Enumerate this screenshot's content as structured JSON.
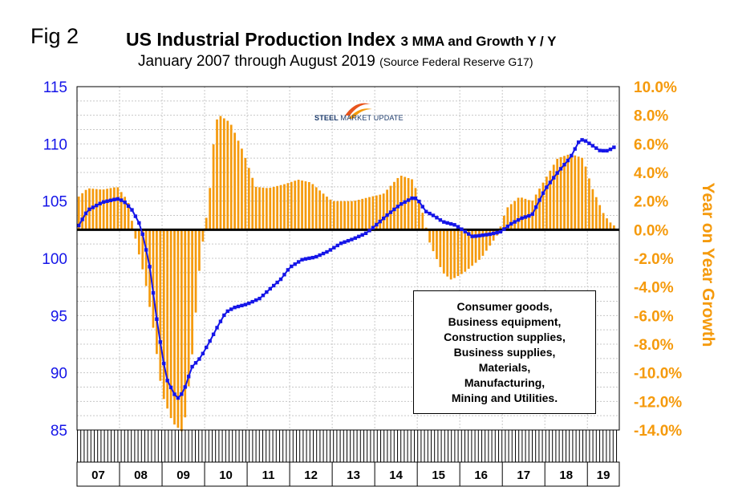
{
  "header": {
    "fig_label": "Fig 2",
    "title": "US Industrial Production Index",
    "title_suffix": "3 MMA and Growth Y / Y",
    "subtitle": "January 2007 through August 2019",
    "subtitle_suffix": "(Source Federal Reserve G17)"
  },
  "logo": {
    "text_bold": "STEEL",
    "text_light": "MARKET UPDATE"
  },
  "legend_box": {
    "lines": [
      "Consumer goods,",
      "Business equipment,",
      "Construction supplies,",
      "Business supplies,",
      "Materials,",
      "Manufacturing,",
      "Mining and Utilities."
    ]
  },
  "colors": {
    "index_line": "#1515e8",
    "growth_bars": "#f59a0c",
    "zero_line": "#000000"
  },
  "chart_data": {
    "type": "bar+line",
    "x_categories": [
      "07",
      "08",
      "09",
      "10",
      "11",
      "12",
      "13",
      "14",
      "15",
      "16",
      "17",
      "18",
      "19"
    ],
    "y_left": {
      "ylim": [
        85,
        115
      ],
      "ticks": [
        "115",
        "110",
        "105",
        "100",
        "95",
        "90",
        "85"
      ]
    },
    "y_right": {
      "label": "Year on Year Growth",
      "ylim": [
        -14,
        10
      ],
      "ticks": [
        "10.0%",
        "8.0%",
        "6.0%",
        "4.0%",
        "2.0%",
        "0.0%",
        "-2.0%",
        "-4.0%",
        "-6.0%",
        "-8.0%",
        "-10.0%",
        "-12.0%",
        "-14.0%"
      ]
    },
    "grid": true,
    "series": [
      {
        "axis": "left",
        "kind": "line",
        "anchors": [
          [
            2007.0,
            102.6
          ],
          [
            2007.25,
            104.2
          ],
          [
            2007.6,
            104.9
          ],
          [
            2007.95,
            105.2
          ],
          [
            2008.1,
            105.0
          ],
          [
            2008.3,
            104.2
          ],
          [
            2008.5,
            102.8
          ],
          [
            2008.7,
            99.5
          ],
          [
            2008.9,
            94.0
          ],
          [
            2009.1,
            89.5
          ],
          [
            2009.35,
            87.7
          ],
          [
            2009.5,
            88.3
          ],
          [
            2009.7,
            90.5
          ],
          [
            2009.9,
            91.3
          ],
          [
            2010.1,
            92.6
          ],
          [
            2010.3,
            94.0
          ],
          [
            2010.5,
            95.3
          ],
          [
            2010.7,
            95.7
          ],
          [
            2011.0,
            96.0
          ],
          [
            2011.3,
            96.5
          ],
          [
            2011.5,
            97.2
          ],
          [
            2011.8,
            98.2
          ],
          [
            2012.0,
            99.2
          ],
          [
            2012.3,
            99.9
          ],
          [
            2012.6,
            100.1
          ],
          [
            2012.9,
            100.6
          ],
          [
            2013.2,
            101.3
          ],
          [
            2013.5,
            101.7
          ],
          [
            2013.8,
            102.2
          ],
          [
            2014.0,
            102.8
          ],
          [
            2014.3,
            103.8
          ],
          [
            2014.6,
            104.7
          ],
          [
            2014.9,
            105.3
          ],
          [
            2015.0,
            105.2
          ],
          [
            2015.2,
            104.1
          ],
          [
            2015.4,
            103.7
          ],
          [
            2015.6,
            103.2
          ],
          [
            2015.9,
            102.9
          ],
          [
            2016.1,
            102.4
          ],
          [
            2016.3,
            101.9
          ],
          [
            2016.5,
            102.0
          ],
          [
            2016.7,
            102.1
          ],
          [
            2016.95,
            102.3
          ],
          [
            2017.2,
            103.0
          ],
          [
            2017.45,
            103.5
          ],
          [
            2017.7,
            103.8
          ],
          [
            2018.0,
            106.0
          ],
          [
            2018.3,
            107.5
          ],
          [
            2018.6,
            108.8
          ],
          [
            2018.8,
            110.2
          ],
          [
            2018.9,
            110.4
          ],
          [
            2019.1,
            109.9
          ],
          [
            2019.3,
            109.4
          ],
          [
            2019.5,
            109.4
          ],
          [
            2019.6,
            109.7
          ]
        ]
      },
      {
        "axis": "right",
        "kind": "bar",
        "anchors": [
          [
            2007.0,
            2.2
          ],
          [
            2007.25,
            2.9
          ],
          [
            2007.6,
            2.8
          ],
          [
            2007.95,
            3.0
          ],
          [
            2008.2,
            2.0
          ],
          [
            2008.4,
            -1.0
          ],
          [
            2008.6,
            -3.5
          ],
          [
            2008.8,
            -7.0
          ],
          [
            2009.0,
            -11.5
          ],
          [
            2009.25,
            -13.5
          ],
          [
            2009.5,
            -14.2
          ],
          [
            2009.7,
            -9.0
          ],
          [
            2009.9,
            -2.0
          ],
          [
            2010.1,
            2.0
          ],
          [
            2010.25,
            7.5
          ],
          [
            2010.35,
            8.0
          ],
          [
            2010.6,
            7.5
          ],
          [
            2010.9,
            5.5
          ],
          [
            2011.2,
            3.0
          ],
          [
            2011.5,
            2.9
          ],
          [
            2011.9,
            3.2
          ],
          [
            2012.2,
            3.5
          ],
          [
            2012.5,
            3.3
          ],
          [
            2012.8,
            2.5
          ],
          [
            2013.0,
            2.0
          ],
          [
            2013.5,
            2.0
          ],
          [
            2013.9,
            2.3
          ],
          [
            2014.2,
            2.5
          ],
          [
            2014.6,
            3.8
          ],
          [
            2014.9,
            3.5
          ],
          [
            2015.1,
            1.5
          ],
          [
            2015.3,
            -1.0
          ],
          [
            2015.6,
            -3.0
          ],
          [
            2015.8,
            -3.5
          ],
          [
            2016.1,
            -3.0
          ],
          [
            2016.5,
            -2.0
          ],
          [
            2016.9,
            -0.3
          ],
          [
            2017.1,
            1.5
          ],
          [
            2017.4,
            2.3
          ],
          [
            2017.7,
            2.0
          ],
          [
            2018.0,
            3.5
          ],
          [
            2018.3,
            5.0
          ],
          [
            2018.6,
            5.3
          ],
          [
            2018.9,
            5.0
          ],
          [
            2019.1,
            3.0
          ],
          [
            2019.4,
            1.0
          ],
          [
            2019.6,
            0.3
          ]
        ]
      }
    ]
  }
}
